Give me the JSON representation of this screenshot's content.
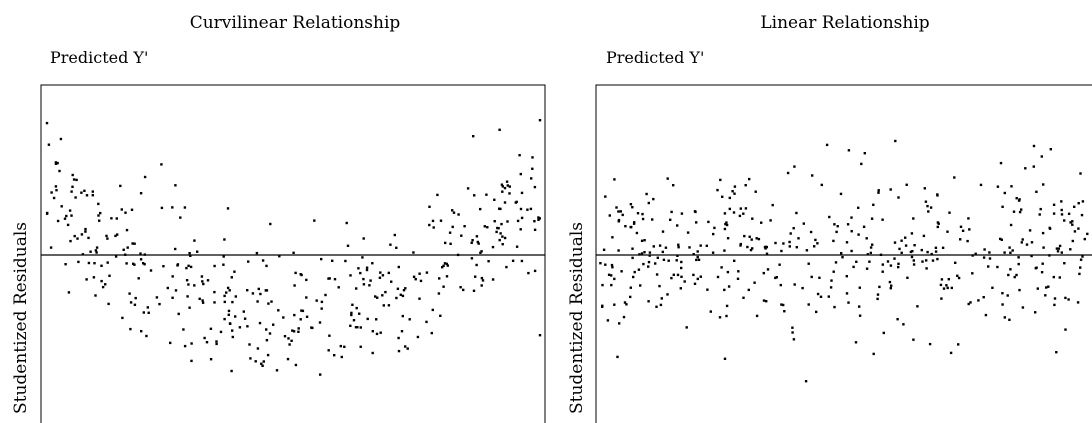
{
  "chart_data": [
    {
      "type": "scatter",
      "title": "Curvilinear Relationship",
      "xlabel": "Predicted Y'",
      "ylabel": "Studentized Residuals",
      "pattern": "curvilinear",
      "n_points": 430,
      "baseline_y": 0,
      "grid": false,
      "legend": "none"
    },
    {
      "type": "scatter",
      "title": "Linear Relationship",
      "xlabel": "Predicted Y'",
      "ylabel": "Studentized Residuals",
      "pattern": "linear",
      "n_points": 470,
      "baseline_y": 0,
      "grid": false,
      "legend": "none"
    }
  ]
}
